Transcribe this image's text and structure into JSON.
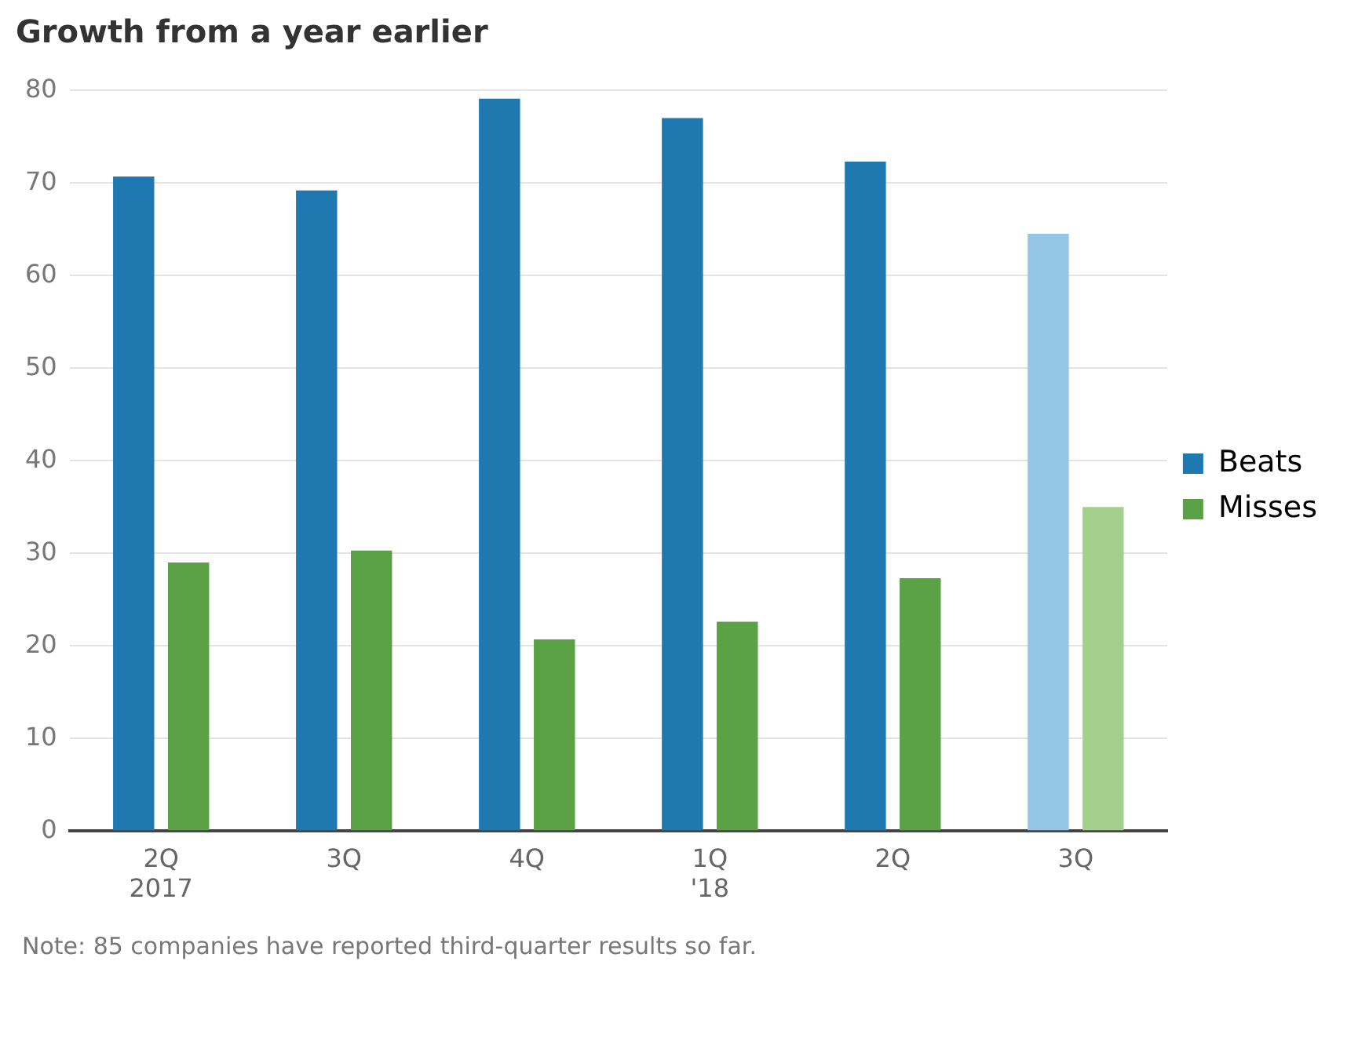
{
  "chart_data": {
    "type": "bar",
    "title": "Growth from a year earlier",
    "categories": [
      "2Q\n2017",
      "3Q",
      "4Q",
      "1Q\n'18",
      "2Q",
      "3Q"
    ],
    "series": [
      {
        "name": "Beats",
        "color": "#1f78b0",
        "colors": [
          "#1f78b0",
          "#1f78b0",
          "#1f78b0",
          "#1f78b0",
          "#1f78b0",
          "#95c6e8"
        ],
        "values": [
          70.7,
          69.2,
          79.1,
          77.0,
          72.3,
          64.5
        ]
      },
      {
        "name": "Misses",
        "color": "#5ba146",
        "colors": [
          "#5ba146",
          "#5ba146",
          "#5ba146",
          "#5ba146",
          "#5ba146",
          "#a3d08c"
        ],
        "values": [
          29.0,
          30.3,
          20.7,
          22.6,
          27.3,
          35.0
        ]
      }
    ],
    "ylim": [
      0,
      80
    ],
    "yticks": [
      0,
      10,
      20,
      30,
      40,
      50,
      60,
      70,
      80
    ],
    "grid": "y",
    "legend": "right",
    "annotations": [
      "Note: 85 companies have reported third-quarter results so far."
    ]
  }
}
